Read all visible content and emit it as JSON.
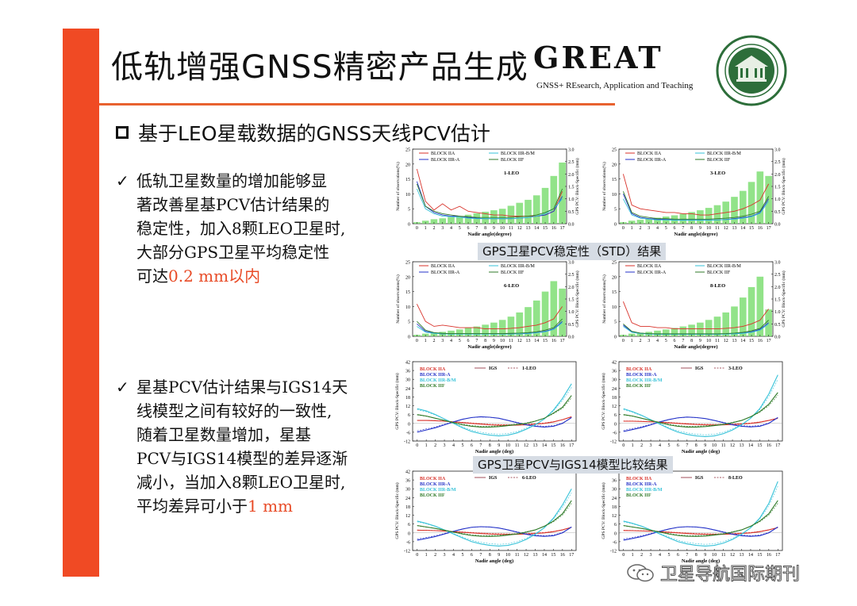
{
  "slide": {
    "title": "低轨增强GNSS精密产品生成",
    "subtitle": "基于LEO星载数据的GNSS天线PCV估计",
    "logo": "GREAT",
    "logo_subtitle": "GNSS+ REsearch, Application and Teaching",
    "colors": {
      "accent": "#f04a24",
      "title_rule": "#e8622f",
      "highlight": "#e84b27",
      "caption_bg": "#d6dce4"
    },
    "bullet1": {
      "check": "✓",
      "lines": [
        "低轨卫星数量的增加能够显",
        "著改善星基PCV估计结果的",
        "稳定性，加入8颗LEO卫星时,",
        "大部分GPS卫星平均稳定性"
      ],
      "last_prefix": "可达",
      "highlight": "0.2 mm以内"
    },
    "bullet2": {
      "check": "✓",
      "lines": [
        "星基PCV估计结果与IGS14天",
        "线模型之间有较好的一致性,",
        "随着卫星数量增加，星基",
        "PCV与IGS14模型的差异逐渐",
        "减小，当加入8颗LEO卫星时,"
      ],
      "last_prefix": "平均差异可小于",
      "highlight": "1 mm"
    },
    "caption_std": "GPS卫星PCV稳定性（STD）结果",
    "caption_cmp": "GPS卫星PCV与IGS14模型比较结果",
    "watermark": "卫星导航国际期刊"
  },
  "chart_data": [
    {
      "type": "bar",
      "panel": "1-LEO",
      "group": "std",
      "xlabel": "Nadir angle(degree)",
      "ylabel": "Number of observations(%)",
      "y2label": "GPS PCV: Block-Specific (mm)",
      "ylim": [
        0,
        25
      ],
      "y2lim": [
        0,
        3.0
      ],
      "categories": [
        0,
        1,
        2,
        3,
        4,
        5,
        6,
        7,
        8,
        9,
        10,
        11,
        12,
        13,
        14,
        15,
        16,
        17
      ],
      "bars": [
        0.5,
        1,
        1.5,
        1.8,
        2.2,
        2.5,
        3,
        3.5,
        4,
        4.5,
        5,
        6,
        7,
        8,
        9.5,
        12,
        16,
        20.5
      ],
      "series": [
        {
          "name": "BLOCK IIA",
          "color": "#d8322a",
          "values": [
            2.2,
            0.9,
            0.55,
            0.8,
            0.55,
            0.7,
            0.5,
            0.45,
            0.4,
            0.35,
            0.35,
            0.3,
            0.3,
            0.3,
            0.3,
            0.35,
            0.5,
            1.3
          ]
        },
        {
          "name": "BLOCK IIR-A",
          "color": "#2432c8",
          "values": [
            1.7,
            0.7,
            0.45,
            0.35,
            0.3,
            0.3,
            0.25,
            0.22,
            0.2,
            0.2,
            0.2,
            0.2,
            0.22,
            0.25,
            0.3,
            0.35,
            0.5,
            1.1
          ]
        },
        {
          "name": "BLOCK IIR-B/M",
          "color": "#36c2d8",
          "values": [
            1.4,
            0.6,
            0.4,
            0.3,
            0.28,
            0.25,
            0.22,
            0.2,
            0.2,
            0.2,
            0.2,
            0.2,
            0.22,
            0.25,
            0.3,
            0.4,
            0.6,
            1.0
          ]
        },
        {
          "name": "BLOCK IIF",
          "color": "#2f7a28",
          "values": [
            1.6,
            0.7,
            0.5,
            0.4,
            0.35,
            0.3,
            0.28,
            0.25,
            0.25,
            0.25,
            0.25,
            0.25,
            0.28,
            0.3,
            0.35,
            0.45,
            0.6,
            1.4
          ]
        }
      ]
    },
    {
      "type": "bar",
      "panel": "3-LEO",
      "group": "std",
      "xlabel": "Nadir angle(degree)",
      "ylabel": "Number of observations(%)",
      "y2label": "GPS PCV: Block-Specific (mm)",
      "ylim": [
        0,
        25
      ],
      "y2lim": [
        0,
        3.0
      ],
      "categories": [
        0,
        1,
        2,
        3,
        4,
        5,
        6,
        7,
        8,
        9,
        10,
        11,
        12,
        13,
        14,
        15,
        16,
        17
      ],
      "bars": [
        0.5,
        1,
        1.3,
        1.6,
        2,
        2.4,
        2.8,
        3.3,
        3.9,
        4.5,
        5.3,
        6.2,
        7.4,
        9,
        11,
        14,
        17.5,
        16
      ],
      "series": [
        {
          "name": "BLOCK IIA",
          "color": "#d8322a",
          "values": [
            2.0,
            0.75,
            0.6,
            0.55,
            0.5,
            0.45,
            0.45,
            0.4,
            0.4,
            0.35,
            0.35,
            0.4,
            0.45,
            0.5,
            0.6,
            0.75,
            0.95,
            1.6
          ]
        },
        {
          "name": "BLOCK IIR-A",
          "color": "#2432c8",
          "values": [
            1.2,
            0.4,
            0.25,
            0.2,
            0.18,
            0.17,
            0.15,
            0.15,
            0.15,
            0.15,
            0.15,
            0.15,
            0.17,
            0.2,
            0.25,
            0.3,
            0.45,
            1.0
          ]
        },
        {
          "name": "BLOCK IIR-B/M",
          "color": "#36c2d8",
          "values": [
            1.0,
            0.35,
            0.22,
            0.18,
            0.15,
            0.15,
            0.14,
            0.14,
            0.14,
            0.14,
            0.14,
            0.15,
            0.16,
            0.18,
            0.22,
            0.28,
            0.42,
            0.9
          ]
        },
        {
          "name": "BLOCK IIF",
          "color": "#2f7a28",
          "values": [
            1.3,
            0.45,
            0.3,
            0.25,
            0.2,
            0.2,
            0.18,
            0.18,
            0.18,
            0.18,
            0.18,
            0.2,
            0.22,
            0.25,
            0.3,
            0.38,
            0.5,
            1.1
          ]
        }
      ]
    },
    {
      "type": "bar",
      "panel": "6-LEO",
      "group": "std",
      "xlabel": "Nadir angle(degree)",
      "ylabel": "Number of observations(%)",
      "y2label": "GPS PCV: Block-Specific (mm)",
      "ylim": [
        0,
        25
      ],
      "y2lim": [
        0,
        3.0
      ],
      "categories": [
        0,
        1,
        2,
        3,
        4,
        5,
        6,
        7,
        8,
        9,
        10,
        11,
        12,
        13,
        14,
        15,
        16,
        17
      ],
      "bars": [
        0.5,
        0.9,
        1.2,
        1.5,
        1.9,
        2.3,
        2.8,
        3.3,
        3.9,
        4.6,
        5.5,
        6.6,
        8,
        9.8,
        12,
        15,
        18.5,
        16
      ],
      "series": [
        {
          "name": "BLOCK IIA",
          "color": "#d8322a",
          "values": [
            1.3,
            0.6,
            0.4,
            0.45,
            0.4,
            0.35,
            0.35,
            0.35,
            0.3,
            0.3,
            0.3,
            0.32,
            0.35,
            0.4,
            0.45,
            0.55,
            0.7,
            1.2
          ]
        },
        {
          "name": "BLOCK IIR-A",
          "color": "#2432c8",
          "values": [
            0.5,
            0.2,
            0.13,
            0.1,
            0.1,
            0.1,
            0.1,
            0.1,
            0.1,
            0.1,
            0.1,
            0.1,
            0.1,
            0.12,
            0.15,
            0.2,
            0.3,
            0.6
          ]
        },
        {
          "name": "BLOCK IIR-B/M",
          "color": "#36c2d8",
          "values": [
            0.4,
            0.17,
            0.12,
            0.1,
            0.09,
            0.09,
            0.09,
            0.09,
            0.09,
            0.09,
            0.09,
            0.09,
            0.1,
            0.11,
            0.14,
            0.18,
            0.28,
            0.55
          ]
        },
        {
          "name": "BLOCK IIF",
          "color": "#2f7a28",
          "values": [
            0.6,
            0.25,
            0.15,
            0.12,
            0.11,
            0.11,
            0.11,
            0.11,
            0.11,
            0.11,
            0.11,
            0.12,
            0.13,
            0.15,
            0.18,
            0.25,
            0.35,
            0.7
          ]
        }
      ]
    },
    {
      "type": "bar",
      "panel": "8-LEO",
      "group": "std",
      "xlabel": "Nadir angle(degree)",
      "ylabel": "Number of observations(%)",
      "y2label": "GPS PCV: Block-Specific (mm)",
      "ylim": [
        0,
        25
      ],
      "y2lim": [
        0,
        3.0
      ],
      "categories": [
        0,
        1,
        2,
        3,
        4,
        5,
        6,
        7,
        8,
        9,
        10,
        11,
        12,
        13,
        14,
        15,
        16,
        17
      ],
      "bars": [
        0.5,
        0.9,
        1.2,
        1.5,
        1.9,
        2.3,
        2.8,
        3.3,
        3.9,
        4.6,
        5.5,
        6.6,
        8,
        10,
        13,
        16.5,
        20,
        9
      ],
      "series": [
        {
          "name": "BLOCK IIA",
          "color": "#d8322a",
          "values": [
            1.4,
            0.55,
            0.4,
            0.4,
            0.35,
            0.35,
            0.3,
            0.3,
            0.3,
            0.3,
            0.3,
            0.3,
            0.32,
            0.35,
            0.4,
            0.5,
            0.65,
            1.1
          ]
        },
        {
          "name": "BLOCK IIR-A",
          "color": "#2432c8",
          "values": [
            0.45,
            0.18,
            0.12,
            0.1,
            0.09,
            0.09,
            0.09,
            0.09,
            0.09,
            0.09,
            0.09,
            0.09,
            0.1,
            0.11,
            0.13,
            0.18,
            0.28,
            0.55
          ]
        },
        {
          "name": "BLOCK IIR-B/M",
          "color": "#36c2d8",
          "values": [
            0.4,
            0.16,
            0.11,
            0.09,
            0.08,
            0.08,
            0.08,
            0.08,
            0.08,
            0.08,
            0.08,
            0.08,
            0.09,
            0.1,
            0.12,
            0.16,
            0.25,
            0.5
          ]
        },
        {
          "name": "BLOCK IIF",
          "color": "#2f7a28",
          "values": [
            0.5,
            0.2,
            0.13,
            0.11,
            0.1,
            0.1,
            0.1,
            0.1,
            0.1,
            0.1,
            0.1,
            0.1,
            0.11,
            0.13,
            0.16,
            0.22,
            0.32,
            0.65
          ]
        }
      ]
    },
    {
      "type": "line",
      "panel": "1-LEO",
      "group": "cmp",
      "xlabel": "Nadir angle (deg)",
      "ylabel": "GPS PCV: Block-Specific (mm)",
      "ylim": [
        -12,
        42
      ],
      "x": [
        0,
        1,
        2,
        3,
        4,
        5,
        6,
        7,
        8,
        9,
        10,
        11,
        12,
        13,
        14,
        15,
        16,
        17
      ],
      "legend_ref": [
        "IGS",
        "1-LEO"
      ],
      "series": [
        {
          "name": "BLOCK IIA",
          "color": "#d8322a",
          "values": [
            2,
            2,
            1.8,
            1.5,
            1,
            0.5,
            0,
            -0.5,
            -1,
            -1.2,
            -1.3,
            -1.2,
            -1,
            -0.5,
            0,
            1,
            2.5,
            4.5
          ]
        },
        {
          "name": "BLOCK IIR-A",
          "color": "#2432c8",
          "values": [
            -6,
            -4.5,
            -3,
            -1,
            1,
            2.8,
            4,
            4.5,
            4.2,
            3.5,
            2,
            0.5,
            -1,
            -2,
            -2.5,
            -2,
            0,
            4
          ]
        },
        {
          "name": "BLOCK IIR-B/M",
          "color": "#36c2d8",
          "values": [
            10,
            8.5,
            6,
            3,
            0,
            -3,
            -5.5,
            -7,
            -8,
            -8.5,
            -8,
            -6.5,
            -4,
            -1,
            3,
            9,
            17,
            27
          ]
        },
        {
          "name": "BLOCK IIF",
          "color": "#2f7a28",
          "values": [
            6,
            5,
            3.5,
            2,
            0.5,
            -1,
            -2,
            -2.5,
            -2.5,
            -2.2,
            -1.5,
            -0.8,
            0,
            1.5,
            3.5,
            7,
            11,
            19
          ]
        }
      ]
    },
    {
      "type": "line",
      "panel": "3-LEO",
      "group": "cmp",
      "xlabel": "Nadir angle (deg)",
      "ylabel": "GPS PCV: Block-Specific (mm)",
      "ylim": [
        -12,
        42
      ],
      "x": [
        0,
        1,
        2,
        3,
        4,
        5,
        6,
        7,
        8,
        9,
        10,
        11,
        12,
        13,
        14,
        15,
        16,
        17
      ],
      "legend_ref": [
        "IGS",
        "3-LEO"
      ],
      "series": [
        {
          "name": "BLOCK IIA",
          "color": "#d8322a",
          "values": [
            1.5,
            1.5,
            1.3,
            1.1,
            0.8,
            0.4,
            0,
            -0.4,
            -0.8,
            -1,
            -1.1,
            -1,
            -0.8,
            -0.4,
            0,
            0.8,
            2,
            3.5
          ]
        },
        {
          "name": "BLOCK IIR-A",
          "color": "#2432c8",
          "values": [
            -5.5,
            -4.2,
            -2.8,
            -1,
            1,
            2.6,
            3.8,
            4.3,
            4,
            3.3,
            2,
            0.5,
            -1,
            -2,
            -2.4,
            -2,
            0,
            4
          ]
        },
        {
          "name": "BLOCK IIR-B/M",
          "color": "#36c2d8",
          "values": [
            10,
            8,
            5.5,
            2.5,
            -0.5,
            -3.5,
            -6,
            -7.5,
            -8.5,
            -9,
            -8.5,
            -7,
            -4.5,
            -1,
            3.5,
            10,
            20,
            33
          ]
        },
        {
          "name": "BLOCK IIF",
          "color": "#2f7a28",
          "values": [
            6,
            5,
            3.5,
            2,
            0.5,
            -1,
            -2,
            -2.5,
            -2.5,
            -2.2,
            -1.5,
            -0.8,
            0.5,
            2,
            4.5,
            8,
            13,
            21
          ]
        }
      ]
    },
    {
      "type": "line",
      "panel": "6-LEO",
      "group": "cmp",
      "xlabel": "Nadir angle (deg)",
      "ylabel": "GPS PCV: Block-Specific (mm)",
      "ylim": [
        -12,
        42
      ],
      "x": [
        0,
        1,
        2,
        3,
        4,
        5,
        6,
        7,
        8,
        9,
        10,
        11,
        12,
        13,
        14,
        15,
        16,
        17
      ],
      "legend_ref": [
        "IGS",
        "6-LEO"
      ],
      "series": [
        {
          "name": "BLOCK IIA",
          "color": "#d8322a",
          "values": [
            1.8,
            1.7,
            1.5,
            1.2,
            0.8,
            0.4,
            0,
            -0.4,
            -0.8,
            -1,
            -1.1,
            -1,
            -0.8,
            -0.4,
            0,
            0.8,
            2,
            3.8
          ]
        },
        {
          "name": "BLOCK IIR-A",
          "color": "#2432c8",
          "values": [
            -5,
            -3.8,
            -2.5,
            -0.8,
            1,
            2.6,
            3.8,
            4.2,
            4,
            3.3,
            2,
            0.5,
            -1,
            -2,
            -2.4,
            -2,
            0,
            4
          ]
        },
        {
          "name": "BLOCK IIR-B/M",
          "color": "#36c2d8",
          "values": [
            8,
            6.5,
            4.5,
            2,
            -0.8,
            -3.5,
            -6,
            -7.5,
            -8.5,
            -9,
            -8.5,
            -7,
            -4.5,
            -1,
            3.5,
            10,
            19,
            30
          ]
        },
        {
          "name": "BLOCK IIF",
          "color": "#2f7a28",
          "values": [
            5,
            4,
            3,
            1.8,
            0.5,
            -0.8,
            -1.8,
            -2.3,
            -2.4,
            -2.2,
            -1.5,
            -0.8,
            0.5,
            2,
            4.5,
            8,
            13,
            22
          ]
        }
      ]
    },
    {
      "type": "line",
      "panel": "8-LEO",
      "group": "cmp",
      "xlabel": "Nadir angle (deg)",
      "ylabel": "GPS PCV: Block-Specific (mm)",
      "ylim": [
        -12,
        42
      ],
      "x": [
        0,
        1,
        2,
        3,
        4,
        5,
        6,
        7,
        8,
        9,
        10,
        11,
        12,
        13,
        14,
        15,
        16,
        17
      ],
      "legend_ref": [
        "IGS",
        "8-LEO"
      ],
      "series": [
        {
          "name": "BLOCK IIA",
          "color": "#d8322a",
          "values": [
            1.6,
            1.5,
            1.3,
            1.1,
            0.8,
            0.4,
            0,
            -0.4,
            -0.8,
            -1,
            -1.1,
            -1,
            -0.8,
            -0.4,
            0,
            0.8,
            2,
            3.6
          ]
        },
        {
          "name": "BLOCK IIR-A",
          "color": "#2432c8",
          "values": [
            -5,
            -3.8,
            -2.5,
            -0.8,
            1,
            2.6,
            3.8,
            4.2,
            4,
            3.3,
            2,
            0.5,
            -1,
            -2,
            -2.4,
            -2,
            0,
            4
          ]
        },
        {
          "name": "BLOCK IIR-B/M",
          "color": "#36c2d8",
          "values": [
            8,
            6.5,
            4.5,
            2,
            -0.8,
            -3.5,
            -6,
            -7.5,
            -8.5,
            -9,
            -8.5,
            -7,
            -4.5,
            -1,
            3.5,
            10,
            20,
            35
          ]
        },
        {
          "name": "BLOCK IIF",
          "color": "#2f7a28",
          "values": [
            5,
            4,
            3,
            1.8,
            0.5,
            -0.8,
            -1.8,
            -2.3,
            -2.4,
            -2.2,
            -1.5,
            -0.8,
            0.5,
            2,
            4.5,
            8,
            13,
            22
          ]
        }
      ]
    }
  ]
}
